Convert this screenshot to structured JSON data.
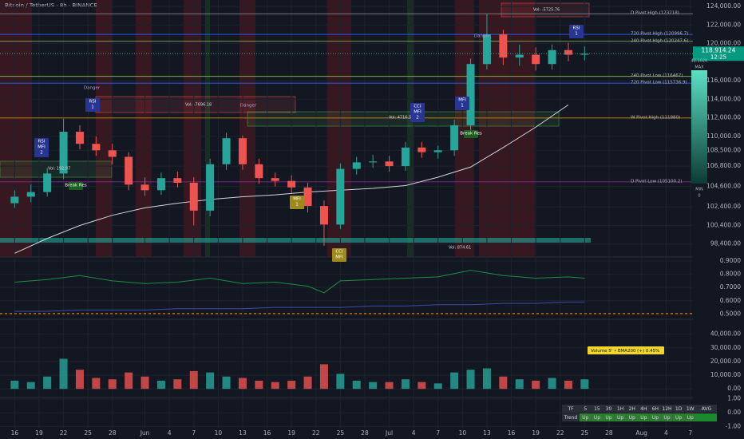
{
  "header": {
    "title": "Bitcoin / TetherUS · 8h · BINANCE",
    "countdown": "12:25"
  },
  "chart_data": [
    {
      "type": "candlestick",
      "up_color": "#26a69a",
      "down_color": "#ef5350",
      "xlim": [
        -1.8,
        83.3
      ],
      "ylim": [
        97000,
        124700
      ],
      "xticks": [
        {
          "value": 0,
          "label": "16"
        },
        {
          "value": 3,
          "label": "19"
        },
        {
          "value": 6,
          "label": "22"
        },
        {
          "value": 9,
          "label": "25"
        },
        {
          "value": 12,
          "label": "28"
        },
        {
          "value": 16,
          "label": "Jun"
        },
        {
          "value": 19,
          "label": "4"
        },
        {
          "value": 22,
          "label": "7"
        },
        {
          "value": 25,
          "label": "10"
        },
        {
          "value": 28,
          "label": "13"
        },
        {
          "value": 31,
          "label": "16"
        },
        {
          "value": 34,
          "label": "19"
        },
        {
          "value": 37,
          "label": "22"
        },
        {
          "value": 40,
          "label": "25"
        },
        {
          "value": 43,
          "label": "28"
        },
        {
          "value": 46,
          "label": "Jul"
        },
        {
          "value": 49,
          "label": "4"
        },
        {
          "value": 52,
          "label": "7"
        },
        {
          "value": 55,
          "label": "10"
        },
        {
          "value": 58,
          "label": "13"
        },
        {
          "value": 61,
          "label": "16"
        },
        {
          "value": 64,
          "label": "19"
        },
        {
          "value": 67,
          "label": "22"
        },
        {
          "value": 70,
          "label": "25"
        },
        {
          "value": 73,
          "label": "28"
        },
        {
          "value": 77,
          "label": "Aug"
        },
        {
          "value": 80,
          "label": "4"
        },
        {
          "value": 83,
          "label": "7"
        }
      ],
      "yticks": [
        {
          "value": 124000,
          "label": "124,000.00"
        },
        {
          "value": 122000,
          "label": "122,000.00"
        },
        {
          "value": 120000,
          "label": "120,000.00"
        },
        {
          "value": 116000,
          "label": "116,000.00"
        },
        {
          "value": 114000,
          "label": "114,000.00"
        },
        {
          "value": 112000,
          "label": "112,000.00"
        },
        {
          "value": 110000,
          "label": "110,000.00"
        },
        {
          "value": 108500,
          "label": "108,500.00"
        },
        {
          "value": 106800,
          "label": "106,800.00"
        },
        {
          "value": 104600,
          "label": "104,600.00"
        },
        {
          "value": 102400,
          "label": "102,400.00"
        },
        {
          "value": 100400,
          "label": "100,400.00"
        },
        {
          "value": 98400,
          "label": "98,400.00"
        }
      ],
      "x": [
        0,
        2,
        4,
        6,
        8,
        10,
        12,
        14,
        16,
        18,
        20,
        22,
        24,
        26,
        28,
        30,
        32,
        34,
        36,
        38,
        40,
        42,
        44,
        46,
        48,
        50,
        52,
        54,
        56,
        58,
        60,
        62,
        64,
        66,
        68,
        70
      ],
      "open": [
        102800,
        103500,
        104000,
        106000,
        110500,
        109200,
        108500,
        107800,
        104800,
        104200,
        105500,
        105000,
        102000,
        107000,
        109800,
        107000,
        105500,
        105200,
        104500,
        102500,
        100500,
        106500,
        107200,
        107300,
        106800,
        108800,
        108300,
        108500,
        111200,
        117800,
        121000,
        118500,
        118800,
        117800,
        119300,
        118800
      ],
      "high": [
        104200,
        104800,
        106600,
        111900,
        111200,
        110000,
        109200,
        108300,
        105600,
        106100,
        106200,
        105600,
        107600,
        110400,
        110100,
        107600,
        106100,
        105800,
        105000,
        103100,
        107100,
        107800,
        108000,
        107900,
        109400,
        109400,
        109000,
        111800,
        118400,
        123218,
        121500,
        119900,
        119600,
        119900,
        120100,
        119700
      ],
      "low": [
        102300,
        102900,
        103500,
        105400,
        108600,
        107900,
        107000,
        104200,
        103600,
        103700,
        104500,
        100400,
        101400,
        106400,
        106400,
        104900,
        104600,
        103900,
        101800,
        98200,
        100000,
        105900,
        106600,
        106200,
        106300,
        107700,
        107600,
        107900,
        110600,
        117200,
        117700,
        117600,
        117100,
        117200,
        118100,
        118200
      ],
      "close": [
        103500,
        104000,
        106000,
        110500,
        109200,
        108500,
        107800,
        104800,
        104200,
        105500,
        105000,
        102000,
        107000,
        109800,
        107000,
        105500,
        105200,
        104500,
        102500,
        100500,
        106500,
        107200,
        107300,
        106800,
        108800,
        108300,
        108500,
        111200,
        117800,
        121000,
        118500,
        118800,
        117800,
        119300,
        118800,
        118914.24
      ],
      "ma": {
        "x": [
          0,
          4,
          8,
          12,
          16,
          20,
          24,
          28,
          32,
          36,
          40,
          44,
          48,
          52,
          56,
          60,
          64,
          68
        ],
        "values": [
          97400,
          99000,
          100400,
          101500,
          102300,
          102800,
          103200,
          103500,
          103700,
          104000,
          104200,
          104400,
          104700,
          105600,
          106700,
          108800,
          111000,
          113400
        ]
      },
      "last_price": {
        "value": 118914.24,
        "label": "118,914.24"
      },
      "levels": [
        {
          "name": "D Pivot High (123218)",
          "value": 123218,
          "color": "#9598a1"
        },
        {
          "name": "720 Pivot High (120996.7)",
          "value": 120996.7,
          "color": "#2962ff"
        },
        {
          "name": "240 Pivot High (120247.6)",
          "value": 120247.6,
          "color": "#8bc34a"
        },
        {
          "name": "240 Pivot Low (116467)",
          "value": 116467,
          "color": "#8bc34a"
        },
        {
          "name": "720 Pivot Low (115736.9)",
          "value": 115736.9,
          "color": "#2962ff"
        },
        {
          "name": "W Pivot High (111980)",
          "value": 111980,
          "color": "#ff9800"
        },
        {
          "name": "D Pivot Low (105100.2)",
          "value": 105100.2,
          "color": "#9c27b0"
        }
      ],
      "signals": [
        {
          "lines": [
            "RSI",
            "MFI",
            "2"
          ],
          "color": "#283593"
        },
        {
          "lines": [
            "RSI",
            "1"
          ],
          "color": "#283593"
        },
        {
          "lines": [
            "Danger"
          ],
          "color": "#7e57c2"
        },
        {
          "lines": [
            "Danger"
          ],
          "color": "#7e57c2"
        },
        {
          "lines": [
            "CCI",
            "MFI",
            "2"
          ],
          "color": "#283593"
        },
        {
          "lines": [
            "MFI",
            "1"
          ],
          "color": "#283593"
        },
        {
          "lines": [
            "Danger"
          ],
          "color": "#7e57c2"
        },
        {
          "lines": [
            "RSI",
            "1"
          ],
          "color": "#283593"
        },
        {
          "lines": [
            "MFI",
            "1"
          ],
          "color": "#9e8a1c"
        },
        {
          "lines": [
            "CCI",
            "MFI"
          ],
          "color": "#9e8a1c"
        },
        {
          "lines": [
            "Break Res"
          ],
          "color": "#1b5e20"
        },
        {
          "lines": [
            "Break Res"
          ],
          "color": "#1b5e20"
        }
      ],
      "volume_labels": [
        "Vol: 192.97",
        "Vol: -7696.18",
        "Vol: 4716.5",
        "Vol: -5725.76",
        "Vol: 874.61"
      ],
      "gauge": {
        "top": "MAX",
        "top_value": "42.102K",
        "bottom": "MIN",
        "bottom_value": "0"
      }
    },
    {
      "type": "line",
      "ylim": [
        0.46,
        0.93
      ],
      "yticks": [
        {
          "value": 0.9,
          "label": "0.9000"
        },
        {
          "value": 0.8,
          "label": "0.8000"
        },
        {
          "value": 0.7,
          "label": "0.7000"
        },
        {
          "value": 0.6,
          "label": "0.6000"
        },
        {
          "value": 0.5,
          "label": "0.5000"
        }
      ],
      "x": [
        0,
        4,
        8,
        12,
        16,
        20,
        24,
        28,
        32,
        36,
        38,
        40,
        44,
        48,
        52,
        56,
        60,
        64,
        68,
        70
      ],
      "series": [
        {
          "color": "#1e8e3e",
          "values": [
            0.74,
            0.76,
            0.79,
            0.75,
            0.73,
            0.74,
            0.77,
            0.73,
            0.74,
            0.71,
            0.66,
            0.75,
            0.76,
            0.77,
            0.78,
            0.83,
            0.79,
            0.77,
            0.78,
            0.77
          ]
        },
        {
          "color": "#3949ab",
          "values": [
            0.52,
            0.52,
            0.53,
            0.53,
            0.53,
            0.54,
            0.54,
            0.54,
            0.55,
            0.55,
            0.55,
            0.55,
            0.56,
            0.56,
            0.57,
            0.57,
            0.58,
            0.58,
            0.59,
            0.59
          ]
        }
      ]
    },
    {
      "type": "bar",
      "ylim": [
        -6300,
        50900
      ],
      "yticks": [
        {
          "value": 40000,
          "label": "40,000.00"
        },
        {
          "value": 30000,
          "label": "30,000.00"
        },
        {
          "value": 20000,
          "label": "20,000.00"
        },
        {
          "value": 10000,
          "label": "10,000.00"
        },
        {
          "value": 0,
          "label": "0.00"
        }
      ],
      "values": [
        6000,
        5000,
        9000,
        22000,
        14000,
        8000,
        7000,
        12000,
        9000,
        6000,
        7000,
        13000,
        12000,
        9000,
        8000,
        6000,
        5000,
        6000,
        9000,
        18000,
        11000,
        6000,
        5000,
        5000,
        7000,
        5000,
        4000,
        12000,
        14000,
        15000,
        9000,
        7000,
        6000,
        8000,
        6000,
        7000
      ],
      "tag": "Volume 5' • EMA200 (+) 0.45%"
    },
    {
      "type": "table",
      "ylim": [
        -1.9,
        1.1
      ],
      "yticks": [
        {
          "value": 1,
          "label": "1.00"
        },
        {
          "value": 0,
          "label": "0.00"
        },
        {
          "value": -1,
          "label": "-1.00"
        }
      ],
      "header": [
        "TF",
        "5",
        "15",
        "30",
        "1H",
        "2H",
        "4H",
        "6H",
        "12H",
        "1D",
        "1W",
        "AVG"
      ],
      "rows": [
        [
          "Trend",
          "Up",
          "Up",
          "Up",
          "Up",
          "Up",
          "Up",
          "Up",
          "Up",
          "Up",
          "Up"
        ]
      ]
    }
  ]
}
